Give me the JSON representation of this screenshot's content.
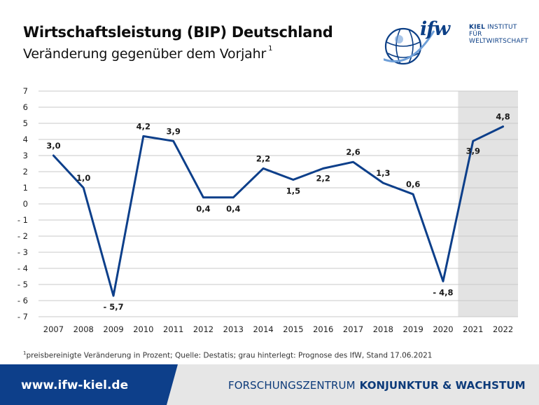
{
  "header": {
    "title": "Wirtschaftsleistung (BIP) Deutschland",
    "subtitle": "Veränderung gegenüber dem Vorjahr",
    "subtitle_sup": "1"
  },
  "logo": {
    "brand": "ifw",
    "line1_bold": "KIEL",
    "line1_rest": "INSTITUT FÜR",
    "line2": "WELTWIRTSCHAFT"
  },
  "chart_data": {
    "type": "line",
    "title": "",
    "xlabel": "",
    "ylabel": "",
    "categories": [
      "2007",
      "2008",
      "2009",
      "2010",
      "2011",
      "2012",
      "2013",
      "2014",
      "2015",
      "2016",
      "2017",
      "2018",
      "2019",
      "2020",
      "2021",
      "2022"
    ],
    "series": [
      {
        "values": [
          3.0,
          1.0,
          -5.7,
          4.2,
          3.9,
          0.4,
          0.4,
          2.2,
          1.5,
          2.2,
          2.6,
          1.3,
          0.6,
          -4.8,
          3.9,
          4.8
        ]
      }
    ],
    "data_labels": [
      "3,0",
      "1,0",
      "- 5,7",
      "4,2",
      "3,9",
      "0,4",
      "0,4",
      "2,2",
      "1,5",
      "2,2",
      "2,6",
      "1,3",
      "0,6",
      "- 4,8",
      "3,9",
      "4,8"
    ],
    "ylim": [
      -7,
      7
    ],
    "yticks": [
      7,
      6,
      5,
      4,
      3,
      2,
      1,
      0,
      -1,
      -2,
      -3,
      -4,
      -5,
      -6,
      -7
    ],
    "ytick_labels": [
      "7",
      "6",
      "5",
      "4",
      "3",
      "2",
      "1",
      "0",
      "- 1",
      "- 2",
      "- 3",
      "- 4",
      "- 5",
      "- 6",
      "- 7"
    ],
    "grid": true,
    "forecast_from": "2021",
    "colors": {
      "line": "#0d3f8a",
      "forecast_shade": "#e3e3e3",
      "grid": "#c8c8c8"
    }
  },
  "footnote": {
    "sup": "1",
    "text": "preisbereinigte Veränderung in Prozent; Quelle: Destatis; grau hinterlegt: Prognose des IfW, Stand 17.06.2021"
  },
  "footer": {
    "url": "www.ifw-kiel.de",
    "section_light": "FORSCHUNGSZENTRUM",
    "section_bold": "KONJUNKTUR & WACHSTUM",
    "colors": {
      "url_band": "#0d3f8a",
      "right_band": "#e6e6e6"
    }
  }
}
